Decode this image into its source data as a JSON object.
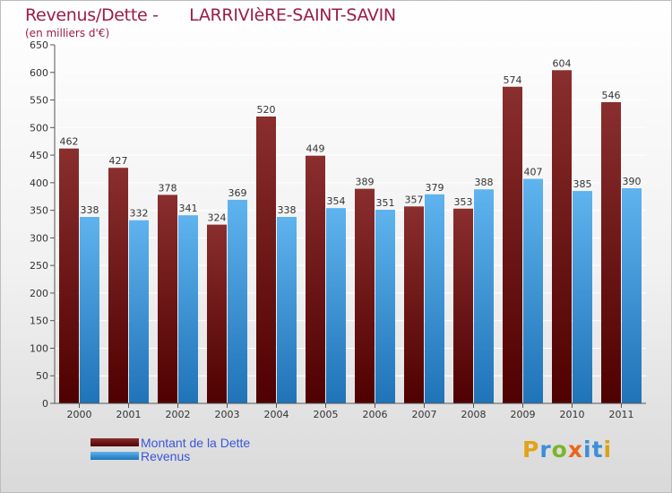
{
  "title_prefix": "Revenus/Dette - ",
  "commune": "LARRIVIèRE-SAINT-SAVIN",
  "units": "(en milliers d'€)",
  "colors": {
    "dette_top": "#8a2e2e",
    "dette_bottom": "#4f0000",
    "revenus_top": "#5fb3ee",
    "revenus_bottom": "#1f73b7",
    "axis": "#555555",
    "grid": "#ffffff",
    "text": "#333333"
  },
  "chart_data": {
    "type": "bar",
    "title": "Revenus/Dette -      LARRIVIèRE-SAINT-SAVIN",
    "subtitle": "(en milliers d'€)",
    "xlabel": "",
    "ylabel": "",
    "ylim": [
      0,
      650
    ],
    "yticks": [
      0,
      50,
      100,
      150,
      200,
      250,
      300,
      350,
      400,
      450,
      500,
      550,
      600,
      650
    ],
    "grid": true,
    "legend_position": "bottom-left",
    "categories": [
      "2000",
      "2001",
      "2002",
      "2003",
      "2004",
      "2005",
      "2006",
      "2007",
      "2008",
      "2009",
      "2010",
      "2011"
    ],
    "series": [
      {
        "name": "Montant de la Dette",
        "values": [
          462,
          427,
          378,
          324,
          520,
          449,
          389,
          357,
          353,
          574,
          604,
          546
        ]
      },
      {
        "name": "Revenus",
        "values": [
          338,
          332,
          341,
          369,
          338,
          354,
          351,
          379,
          388,
          407,
          385,
          390
        ]
      }
    ]
  },
  "logo": {
    "letters": [
      "P",
      "r",
      "o",
      "x",
      "i",
      "t",
      "i"
    ],
    "colors": [
      "#e3a21a",
      "#3c8fd6",
      "#7bb62a",
      "#e9661c",
      "#3c8fd6",
      "#3c8fd6",
      "#d9a21a"
    ]
  }
}
